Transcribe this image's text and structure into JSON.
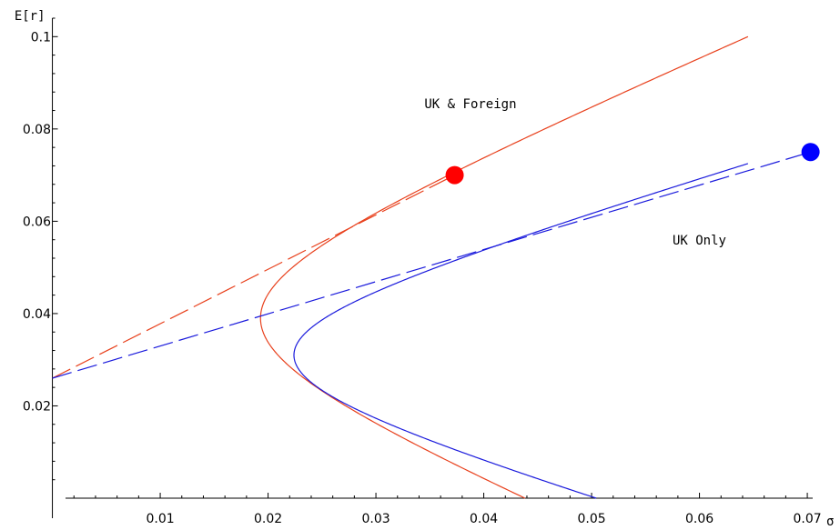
{
  "chart_data": {
    "type": "line",
    "title": "",
    "xlabel": "σ",
    "ylabel": "E[r]",
    "xlim": [
      -0.0003,
      0.0705
    ],
    "ylim": [
      0.0,
      0.104
    ],
    "grid": false,
    "x_ticks": [
      0.01,
      0.02,
      0.03,
      0.04,
      0.05,
      0.06,
      0.07
    ],
    "x_tick_labels": [
      "0.01",
      "0.02",
      "0.03",
      "0.04",
      "0.05",
      "0.06",
      "0.07"
    ],
    "y_ticks": [
      0.02,
      0.04,
      0.06,
      0.08,
      0.1
    ],
    "y_tick_labels": [
      "0.02",
      "0.04",
      "0.06",
      "0.08",
      "0.1"
    ],
    "risk_free_rate": 0.026,
    "series": [
      {
        "name": "UK & Foreign",
        "kind": "frontier",
        "color": "#e8401c",
        "min_variance": {
          "sigma": 0.0193,
          "mean": 0.039
        },
        "upper_end": {
          "sigma": 0.0645,
          "mean": 0.1
        },
        "lower_end": {
          "sigma": 0.0423,
          "mean": 0.0
        }
      },
      {
        "name": "UK Only",
        "kind": "frontier",
        "color": "#1a1adc",
        "min_variance": {
          "sigma": 0.0224,
          "mean": 0.031
        },
        "upper_end": {
          "sigma": 0.0645,
          "mean": 0.0725
        },
        "lower_end": {
          "sigma": 0.0514,
          "mean": 0.0
        }
      },
      {
        "name": "UK & Foreign",
        "kind": "capital-market-line",
        "color": "#e8401c",
        "from": {
          "sigma": 0.0,
          "mean": 0.026
        },
        "to": {
          "sigma": 0.0373,
          "mean": 0.07
        }
      },
      {
        "name": "UK Only",
        "kind": "capital-market-line",
        "color": "#1a1adc",
        "from": {
          "sigma": 0.0,
          "mean": 0.026
        },
        "to": {
          "sigma": 0.0703,
          "mean": 0.075
        }
      }
    ],
    "points": [
      {
        "name": "UK & Foreign tangency",
        "sigma": 0.0373,
        "mean": 0.07,
        "color": "#ff0000"
      },
      {
        "name": "UK Only tangency",
        "sigma": 0.0703,
        "mean": 0.075,
        "color": "#0000ff"
      }
    ],
    "annotations": [
      {
        "text": "UK & Foreign",
        "sigma": 0.0345,
        "mean": 0.0845
      },
      {
        "text": "UK Only",
        "sigma": 0.0575,
        "mean": 0.055
      }
    ]
  }
}
